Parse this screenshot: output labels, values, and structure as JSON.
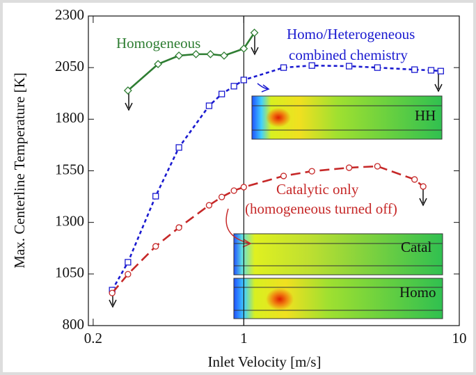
{
  "chart_data": {
    "type": "line",
    "xlabel": "Inlet Velocity [m/s]",
    "ylabel": "Max. Centerline Temperature [K]",
    "xscale": "log",
    "xlim": [
      0.19,
      10
    ],
    "xticks": [
      0.2,
      1,
      10
    ],
    "ylim": [
      800,
      2300
    ],
    "yticks": [
      800,
      1050,
      1300,
      1550,
      1800,
      2050,
      2300
    ],
    "vlines": [
      1
    ],
    "series": [
      {
        "name": "Homogeneous",
        "color": "#2e7d32",
        "marker": "diamond",
        "dash": "solid",
        "x": [
          0.29,
          0.4,
          0.5,
          0.6,
          0.7,
          0.81,
          1.0,
          1.12
        ],
        "values": [
          1939,
          2067,
          2108,
          2115,
          2115,
          2108,
          2142,
          2219
        ]
      },
      {
        "name": "Homo/Heterogeneous combined chemistry",
        "color": "#1a1ad0",
        "marker": "square",
        "dash": "dotted",
        "x": [
          0.245,
          0.29,
          0.39,
          0.5,
          0.69,
          0.79,
          0.9,
          1.0,
          1.53,
          2.07,
          3.08,
          4.17,
          6.2,
          7.4,
          8.2
        ],
        "values": [
          972,
          1107,
          1427,
          1663,
          1865,
          1922,
          1960,
          1990,
          2050,
          2060,
          2057,
          2050,
          2040,
          2037,
          2033
        ]
      },
      {
        "name": "Catalytic only (homogeneous turned off)",
        "color": "#c62828",
        "marker": "circle",
        "dash": "dashed",
        "x": [
          0.245,
          0.29,
          0.39,
          0.5,
          0.69,
          0.79,
          0.9,
          1.0,
          1.53,
          2.07,
          3.08,
          4.17,
          6.2,
          6.8
        ],
        "values": [
          958,
          1049,
          1184,
          1275,
          1383,
          1423,
          1454,
          1471,
          1525,
          1548,
          1565,
          1572,
          1508,
          1474
        ]
      }
    ],
    "annotations": {
      "homogeneous": "Homogeneous",
      "combined_1": "Homo/Heterogeneous",
      "combined_2": "combined chemistry",
      "catalytic_1": "Catalytic only",
      "catalytic_2": "(homogeneous turned off)",
      "inset_hh": "HH",
      "inset_catal": "Catal",
      "inset_homo": "Homo"
    }
  }
}
